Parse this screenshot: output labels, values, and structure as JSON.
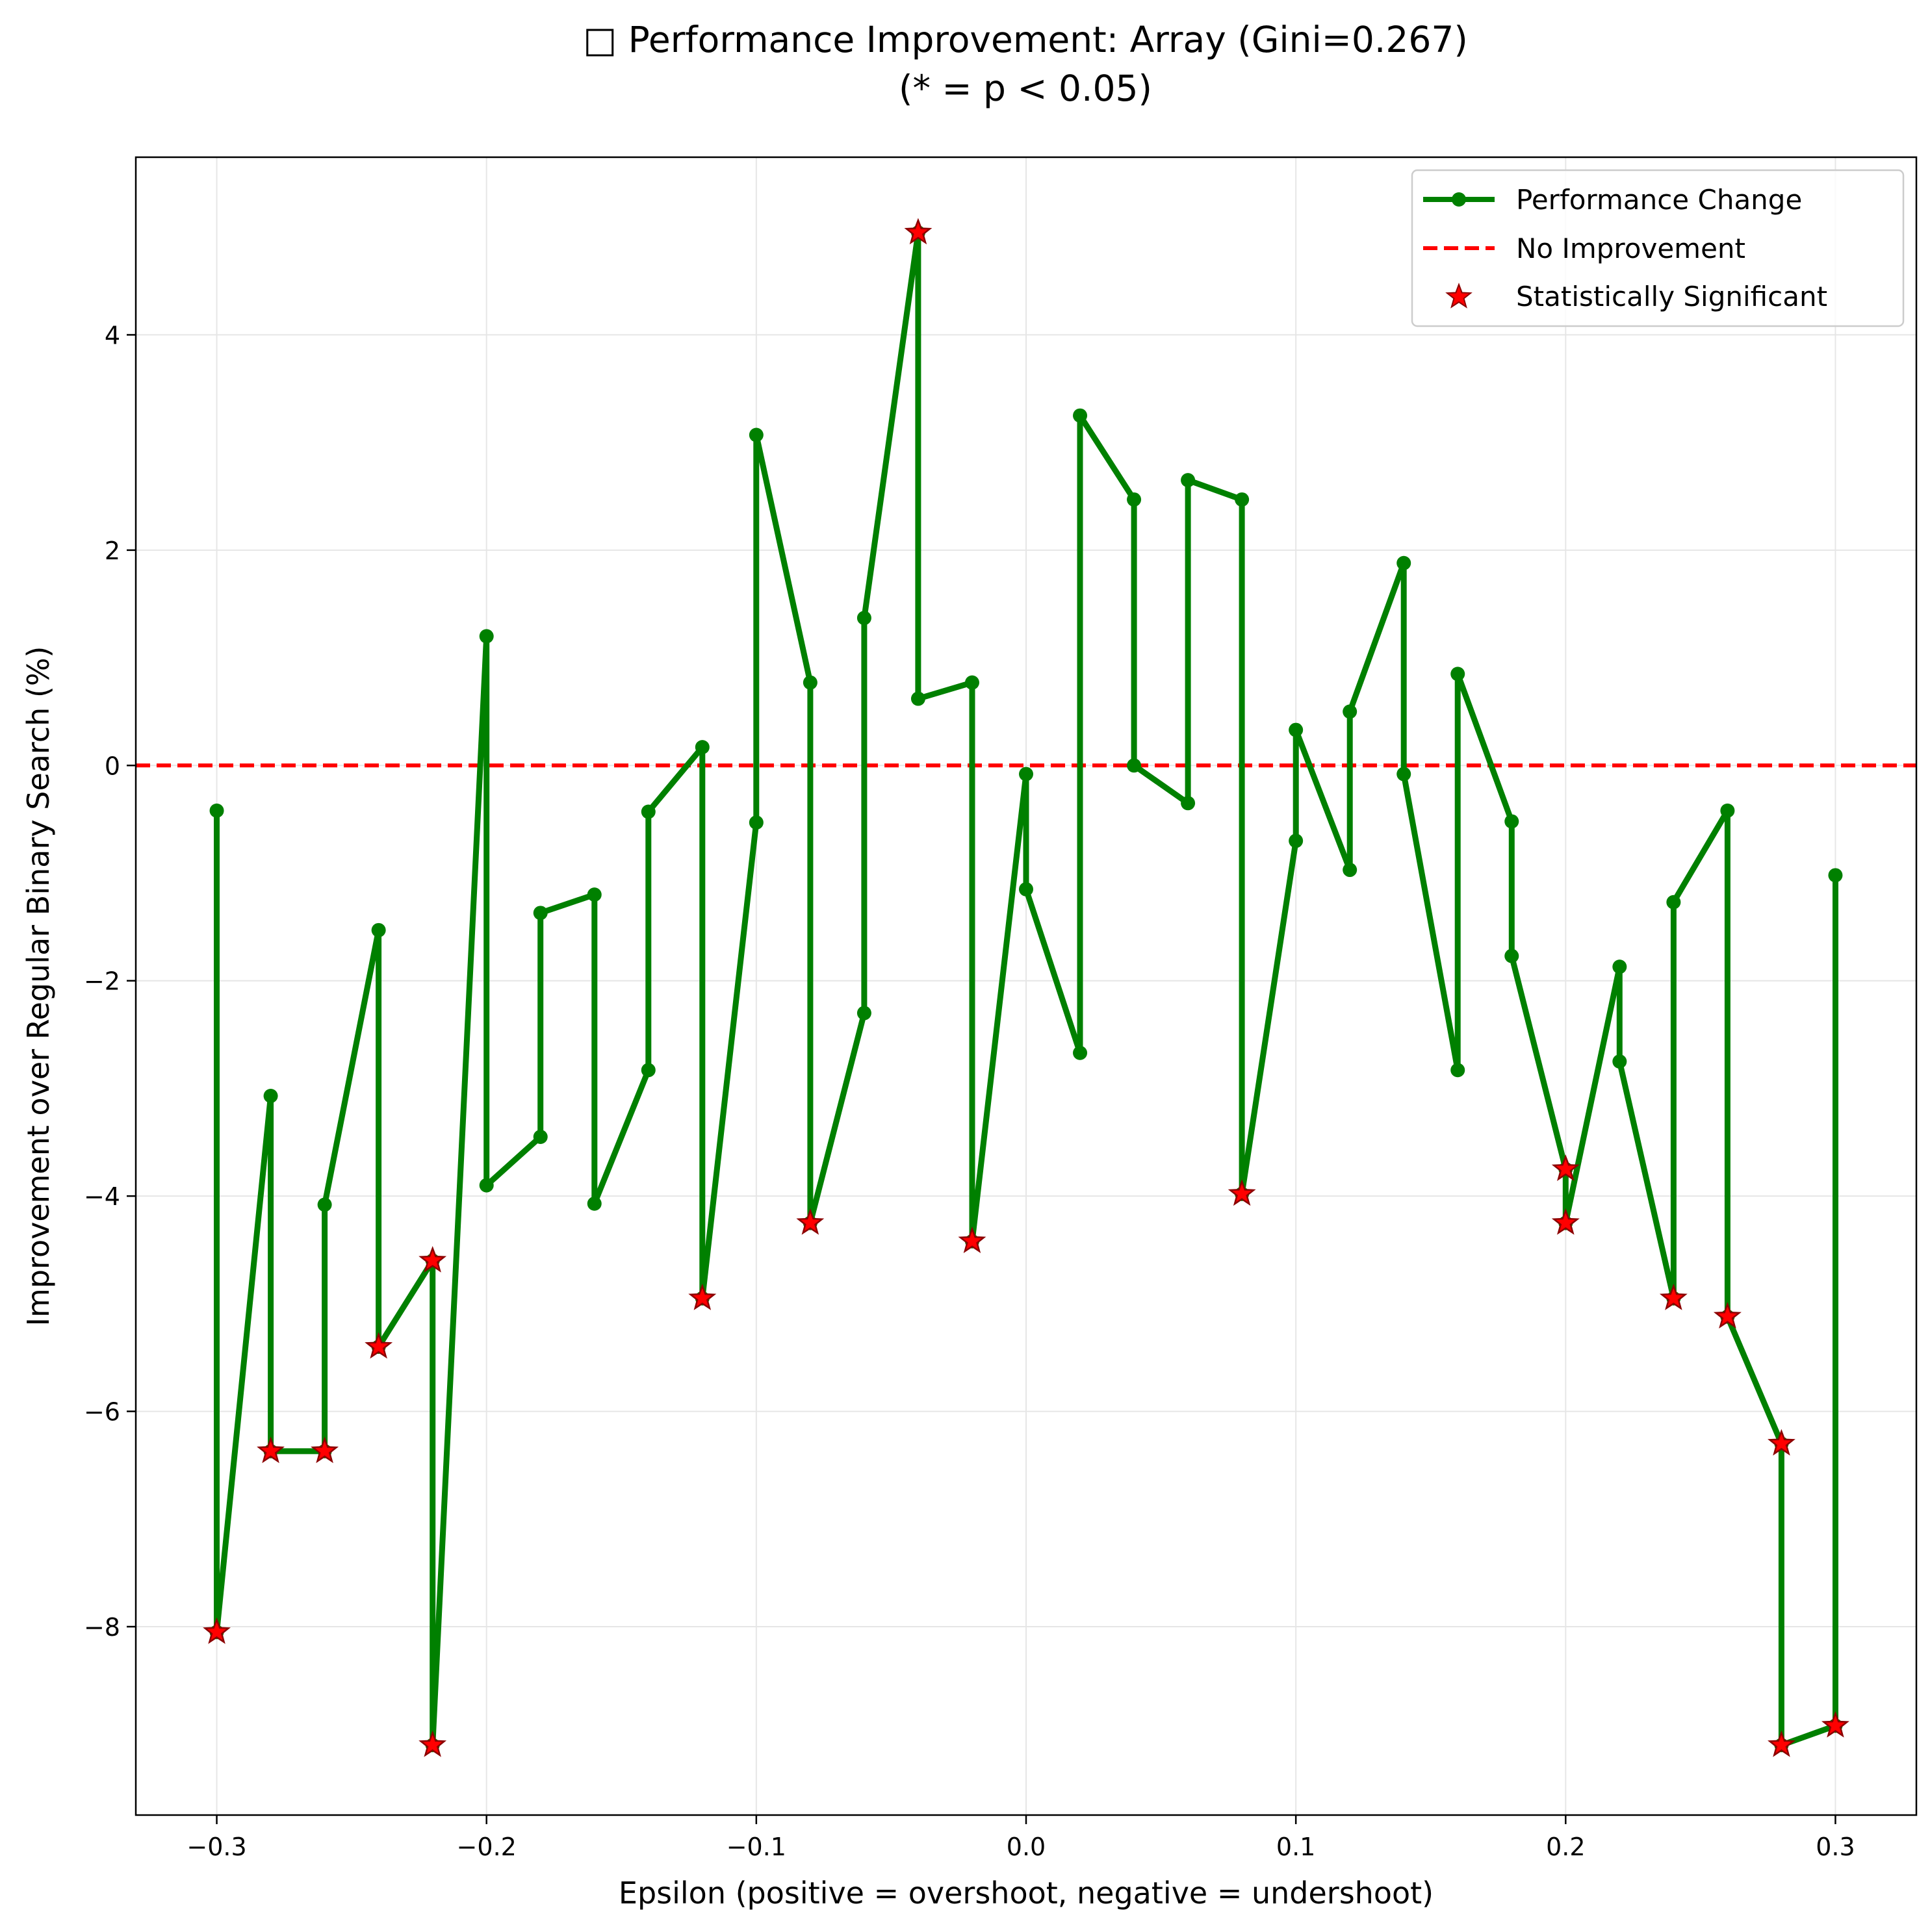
{
  "chart_data": {
    "type": "line",
    "title_line1": "□ Performance Improvement: Array (Gini=0.267)",
    "title_line2": "(* = p < 0.05)",
    "xlabel": "Epsilon (positive = overshoot, negative = undershoot)",
    "ylabel": "Improvement over Regular Binary Search (%)",
    "xlim": [
      -0.33,
      0.33
    ],
    "ylim": [
      -9.75,
      5.65
    ],
    "xticks": [
      -0.3,
      -0.2,
      -0.1,
      0.0,
      0.1,
      0.2,
      0.3
    ],
    "xtick_labels": [
      "−0.3",
      "−0.2",
      "−0.1",
      "0.0",
      "0.1",
      "0.2",
      "0.3"
    ],
    "yticks": [
      -8,
      -6,
      -4,
      -2,
      0,
      2,
      4
    ],
    "ytick_labels": [
      "−8",
      "−6",
      "−4",
      "−2",
      "0",
      "2",
      "4"
    ],
    "grid": true,
    "legend_position": "top-right",
    "colors": {
      "line": "#008000",
      "baseline": "#ff0000",
      "star_fill": "#ff0000",
      "star_edge": "#8b0000"
    },
    "series": [
      {
        "name": "Performance Change",
        "x": [
          -0.3,
          -0.3,
          -0.28,
          -0.28,
          -0.26,
          -0.26,
          -0.24,
          -0.24,
          -0.22,
          -0.22,
          -0.2,
          -0.2,
          -0.18,
          -0.18,
          -0.16,
          -0.16,
          -0.14,
          -0.14,
          -0.12,
          -0.12,
          -0.1,
          -0.1,
          -0.08,
          -0.08,
          -0.06,
          -0.06,
          -0.04,
          -0.04,
          -0.02,
          -0.02,
          0.0,
          0.0,
          0.02,
          0.02,
          0.04,
          0.04,
          0.06,
          0.06,
          0.08,
          0.08,
          0.1,
          0.1,
          0.12,
          0.12,
          0.14,
          0.14,
          0.16,
          0.16,
          0.18,
          0.18,
          0.2,
          0.2,
          0.22,
          0.22,
          0.24,
          0.24,
          0.26,
          0.26,
          0.28,
          0.28,
          0.3,
          0.3
        ],
        "y": [
          -0.42,
          -8.05,
          -3.07,
          -6.37,
          -6.37,
          -4.08,
          -1.53,
          -5.4,
          -4.6,
          -9.1,
          1.2,
          -3.9,
          -3.45,
          -1.37,
          -1.2,
          -4.07,
          -2.83,
          -0.43,
          0.17,
          -4.95,
          -0.53,
          3.07,
          0.77,
          -4.25,
          -2.3,
          1.37,
          4.95,
          0.62,
          0.77,
          -4.42,
          -0.08,
          -1.15,
          -2.67,
          3.25,
          2.47,
          0.0,
          -0.35,
          2.65,
          2.47,
          -3.98,
          -0.7,
          0.33,
          -0.97,
          0.5,
          1.88,
          -0.08,
          -2.83,
          0.85,
          -0.52,
          -1.77,
          -3.75,
          -4.25,
          -1.87,
          -2.75,
          -4.95,
          -1.27,
          -0.42,
          -5.12,
          -6.3,
          -9.1,
          -8.92,
          -1.02
        ]
      },
      {
        "name": "No Improvement",
        "y": 0
      },
      {
        "name": "Statistically Significant",
        "x": [
          -0.3,
          -0.28,
          -0.26,
          -0.24,
          -0.22,
          -0.22,
          -0.12,
          -0.08,
          -0.04,
          -0.02,
          0.08,
          0.2,
          0.2,
          0.24,
          0.26,
          0.28,
          0.28,
          0.3
        ],
        "y": [
          -8.05,
          -6.37,
          -6.37,
          -5.4,
          -4.6,
          -9.1,
          -4.95,
          -4.25,
          4.95,
          -4.42,
          -3.98,
          -3.75,
          -4.25,
          -4.95,
          -5.12,
          -6.3,
          -9.1,
          -8.92
        ]
      }
    ]
  }
}
